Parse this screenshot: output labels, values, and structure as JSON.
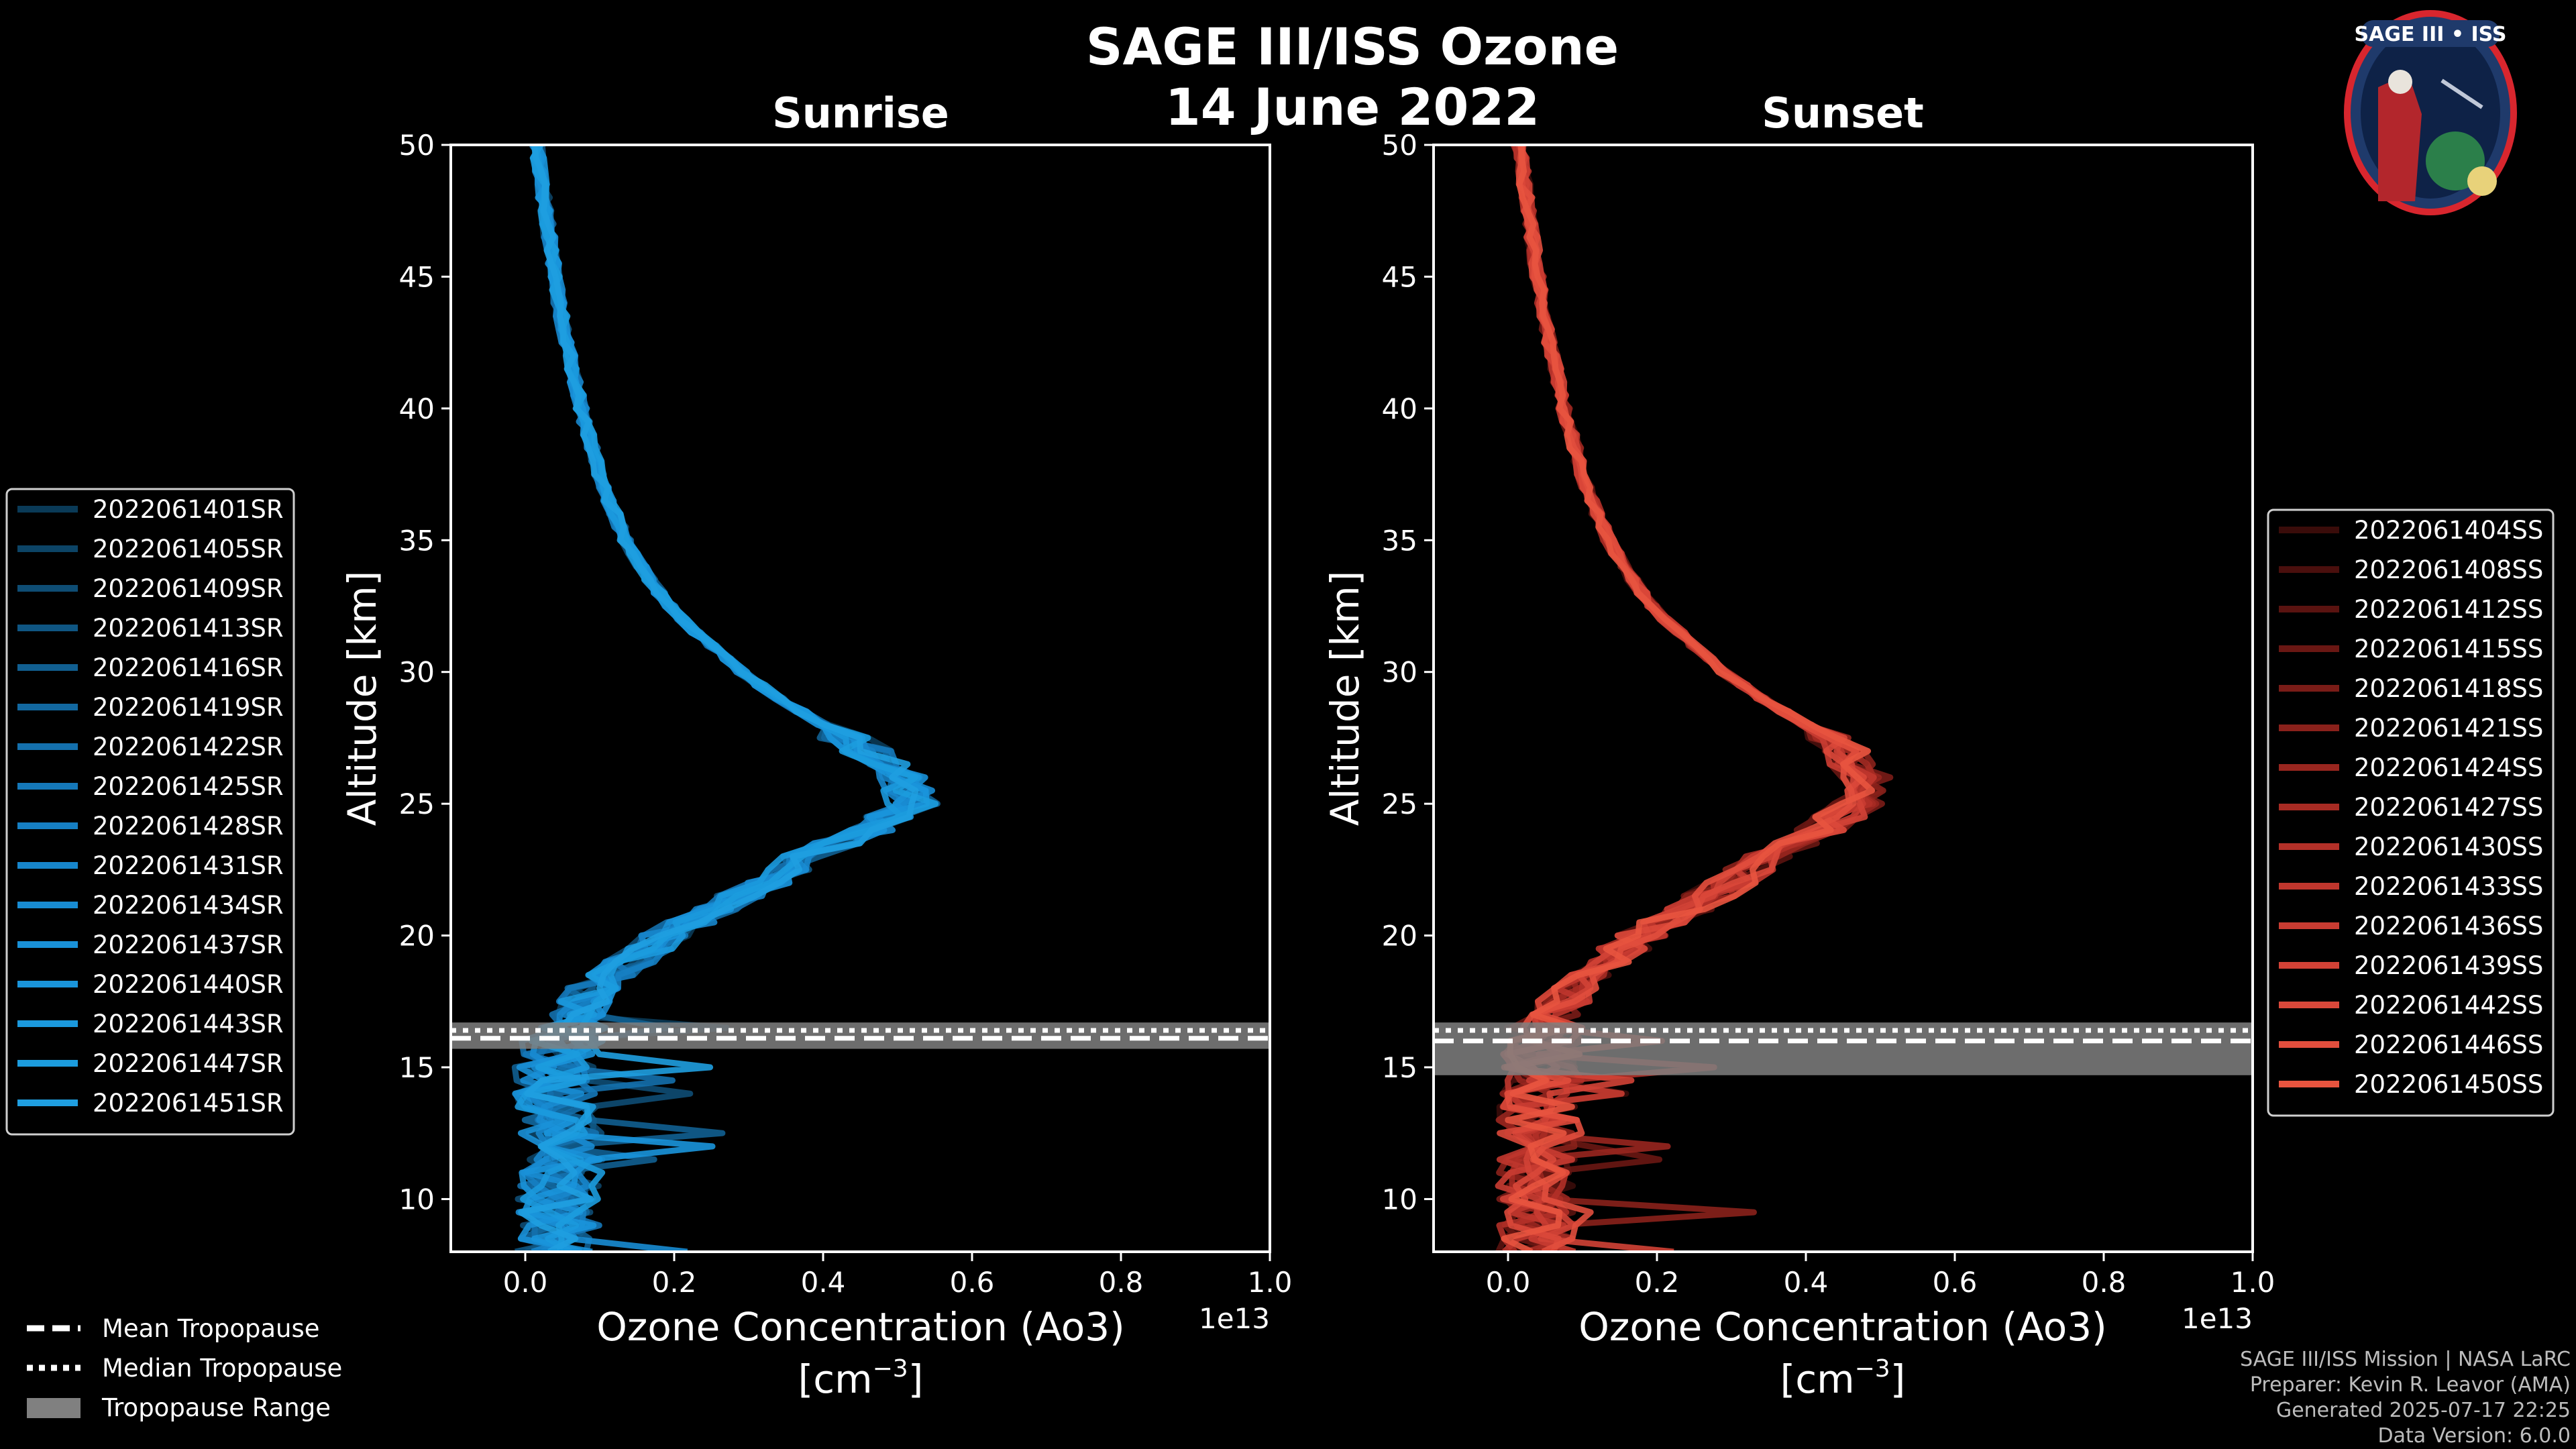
{
  "page": {
    "title": "SAGE III/ISS Ozone",
    "date": "14 June 2022",
    "logo_text": "SAGE III • ISS",
    "credits": [
      "SAGE III/ISS Mission | NASA LaRC",
      "Preparer: Kevin R. Leavor (AMA)",
      "Generated 2025-07-17 22:25",
      "Data Version: 6.0.0"
    ]
  },
  "colors": {
    "sunrise": "#1f9ddc",
    "sunset": "#e8543f",
    "tropopause_range": "#808080"
  },
  "tropopause_legend": [
    "Mean Tropopause",
    "Median Tropopause",
    "Tropopause Range"
  ],
  "chart_data": [
    {
      "type": "line",
      "title": "Sunrise",
      "xlabel": "Ozone Concentration (Ao3)",
      "xunit": "[cm",
      "xunit_sup": "−3",
      "xunit_close": "]",
      "ylabel": "Altitude [km]",
      "xlim": [
        -0.1,
        1.0
      ],
      "ylim": [
        8,
        50
      ],
      "xticks": [
        0.0,
        0.2,
        0.4,
        0.6,
        0.8,
        1.0
      ],
      "xtick_labels": [
        "0.0",
        "0.2",
        "0.4",
        "0.6",
        "0.8",
        "1.0"
      ],
      "yticks": [
        10,
        15,
        20,
        25,
        30,
        35,
        40,
        45,
        50
      ],
      "offset_label": "1e13",
      "tropopause": {
        "mean": 16.1,
        "median": 16.4,
        "range": [
          15.7,
          16.7
        ]
      },
      "profile_shape": {
        "altitudes": [
          8,
          9,
          10,
          11,
          12,
          13,
          14,
          15,
          16,
          17,
          18,
          19,
          20,
          21,
          22,
          23,
          24,
          25,
          26,
          27,
          28,
          29,
          30,
          31,
          32,
          33,
          34,
          35,
          36,
          37,
          38,
          40,
          42,
          44,
          46,
          48,
          50
        ],
        "values": [
          0.04,
          0.045,
          0.045,
          0.05,
          0.05,
          0.045,
          0.04,
          0.04,
          0.05,
          0.07,
          0.09,
          0.14,
          0.19,
          0.25,
          0.32,
          0.38,
          0.46,
          0.52,
          0.51,
          0.46,
          0.4,
          0.34,
          0.29,
          0.25,
          0.21,
          0.18,
          0.155,
          0.135,
          0.12,
          0.105,
          0.095,
          0.075,
          0.06,
          0.045,
          0.035,
          0.025,
          0.015
        ]
      },
      "series": [
        {
          "name": "2022061401SR",
          "color": "#0a3a57"
        },
        {
          "name": "2022061405SR",
          "color": "#0c4466"
        },
        {
          "name": "2022061409SR",
          "color": "#0e4d74"
        },
        {
          "name": "2022061413SR",
          "color": "#0f5683"
        },
        {
          "name": "2022061416SR",
          "color": "#115f91"
        },
        {
          "name": "2022061419SR",
          "color": "#1268a0"
        },
        {
          "name": "2022061422SR",
          "color": "#1470ad"
        },
        {
          "name": "2022061425SR",
          "color": "#1578b9"
        },
        {
          "name": "2022061428SR",
          "color": "#167fc3"
        },
        {
          "name": "2022061431SR",
          "color": "#1786cc"
        },
        {
          "name": "2022061434SR",
          "color": "#188cd3"
        },
        {
          "name": "2022061437SR",
          "color": "#1991d8"
        },
        {
          "name": "2022061440SR",
          "color": "#1a95db"
        },
        {
          "name": "2022061443SR",
          "color": "#1b99dd"
        },
        {
          "name": "2022061447SR",
          "color": "#1c9cde"
        },
        {
          "name": "2022061451SR",
          "color": "#1f9ee0"
        }
      ]
    },
    {
      "type": "line",
      "title": "Sunset",
      "xlabel": "Ozone Concentration (Ao3)",
      "xunit": "[cm",
      "xunit_sup": "−3",
      "xunit_close": "]",
      "ylabel": "Altitude [km]",
      "xlim": [
        -0.1,
        1.0
      ],
      "ylim": [
        8,
        50
      ],
      "xticks": [
        0.0,
        0.2,
        0.4,
        0.6,
        0.8,
        1.0
      ],
      "xtick_labels": [
        "0.0",
        "0.2",
        "0.4",
        "0.6",
        "0.8",
        "1.0"
      ],
      "yticks": [
        10,
        15,
        20,
        25,
        30,
        35,
        40,
        45,
        50
      ],
      "offset_label": "1e13",
      "tropopause": {
        "mean": 16.0,
        "median": 16.4,
        "range": [
          14.7,
          16.7
        ]
      },
      "profile_shape": {
        "altitudes": [
          8,
          9,
          10,
          11,
          12,
          13,
          14,
          15,
          16,
          17,
          18,
          19,
          20,
          21,
          22,
          23,
          24,
          25,
          26,
          27,
          28,
          29,
          30,
          31,
          32,
          33,
          34,
          35,
          36,
          37,
          38,
          40,
          42,
          44,
          46,
          48,
          50
        ],
        "values": [
          0.04,
          0.04,
          0.035,
          0.04,
          0.04,
          0.04,
          0.045,
          0.04,
          0.045,
          0.06,
          0.09,
          0.13,
          0.18,
          0.24,
          0.3,
          0.35,
          0.42,
          0.47,
          0.48,
          0.45,
          0.4,
          0.34,
          0.29,
          0.25,
          0.21,
          0.18,
          0.155,
          0.135,
          0.12,
          0.105,
          0.095,
          0.075,
          0.06,
          0.045,
          0.035,
          0.025,
          0.015
        ]
      },
      "series": [
        {
          "name": "2022061404SS",
          "color": "#3a0c0a"
        },
        {
          "name": "2022061408SS",
          "color": "#4a0f0d"
        },
        {
          "name": "2022061412SS",
          "color": "#5a1310"
        },
        {
          "name": "2022061415SS",
          "color": "#6a1713"
        },
        {
          "name": "2022061418SS",
          "color": "#7a1c17"
        },
        {
          "name": "2022061421SS",
          "color": "#8a211b"
        },
        {
          "name": "2022061424SS",
          "color": "#99261f"
        },
        {
          "name": "2022061427SS",
          "color": "#a72b23"
        },
        {
          "name": "2022061430SS",
          "color": "#b33028"
        },
        {
          "name": "2022061433SS",
          "color": "#bf362d"
        },
        {
          "name": "2022061436SS",
          "color": "#c93c32"
        },
        {
          "name": "2022061439SS",
          "color": "#d24236"
        },
        {
          "name": "2022061442SS",
          "color": "#da483a"
        },
        {
          "name": "2022061446SS",
          "color": "#e14e3d"
        },
        {
          "name": "2022061450SS",
          "color": "#e8543f"
        }
      ]
    }
  ]
}
